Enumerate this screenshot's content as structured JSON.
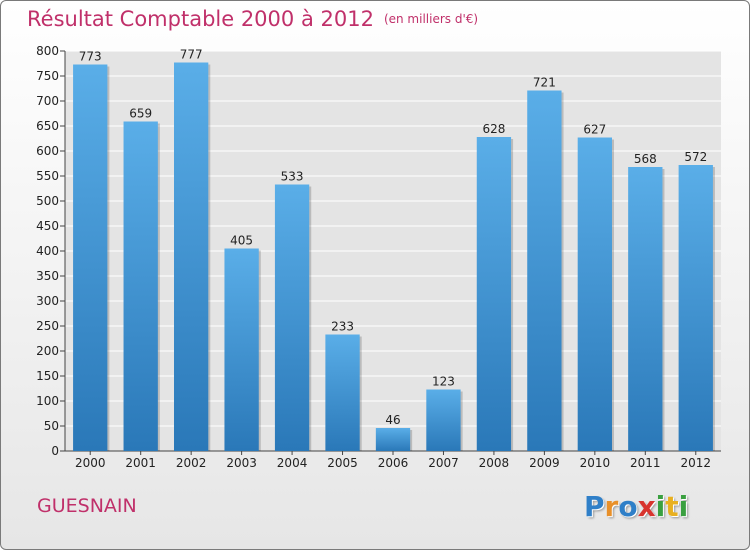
{
  "chart_data": {
    "type": "bar",
    "title": "Résultat Comptable 2000 à 2012",
    "subtitle": "(en milliers d'€)",
    "categories": [
      "2000",
      "2001",
      "2002",
      "2003",
      "2004",
      "2005",
      "2006",
      "2007",
      "2008",
      "2009",
      "2010",
      "2011",
      "2012"
    ],
    "values": [
      773,
      659,
      777,
      405,
      533,
      233,
      46,
      123,
      628,
      721,
      627,
      568,
      572
    ],
    "ylim": [
      0,
      800
    ],
    "yticks": [
      0,
      50,
      100,
      150,
      200,
      250,
      300,
      350,
      400,
      450,
      500,
      550,
      600,
      650,
      700,
      750,
      800
    ],
    "grid": true,
    "bar_color_top": "#5aaee8",
    "bar_color_bottom": "#2a78b8"
  },
  "footer": {
    "town": "GUESNAIN"
  },
  "logo": {
    "letters": [
      "P",
      "r",
      "o",
      "x",
      "i",
      "t",
      "i"
    ],
    "colors": [
      "#2f7fc8",
      "#e8902a",
      "#2f7fc8",
      "#d8342e",
      "#3aa040",
      "#e8b020",
      "#3aa040"
    ]
  }
}
